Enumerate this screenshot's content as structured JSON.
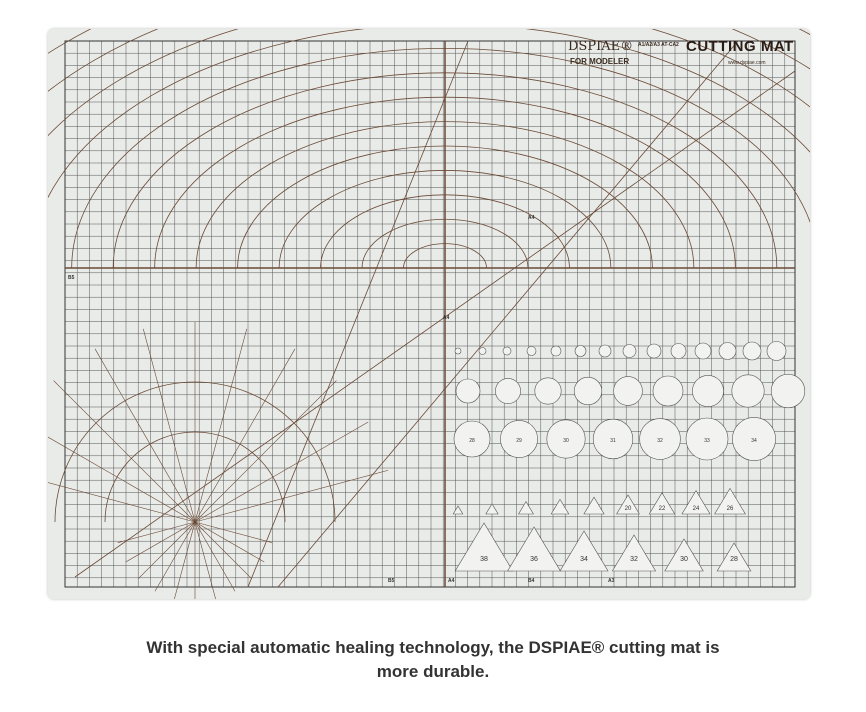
{
  "mat": {
    "brand": "DSPIAE®",
    "model": "A1/A2/A3 AT-CA2",
    "title": "CUTTING MAT",
    "subtitle": "FOR MODELER",
    "website": "www.dspiae.com",
    "line_color": "#6b4a36",
    "background_color": "#e9ebe8",
    "paper_labels": [
      "A4",
      "A4",
      "A3",
      "B4",
      "B5",
      "A4",
      "B5"
    ],
    "circle_row_large": [
      "28",
      "29",
      "30",
      "31",
      "32",
      "33",
      "34"
    ],
    "triangle_row_small": [
      "",
      "",
      "",
      "",
      "",
      "20",
      "22",
      "24",
      "26"
    ],
    "triangle_row_large": [
      "38",
      "36",
      "34",
      "32",
      "30",
      "28"
    ]
  },
  "caption": {
    "line1": "With special automatic healing technology, the DSPIAE® cutting mat is",
    "line2": "more durable."
  }
}
